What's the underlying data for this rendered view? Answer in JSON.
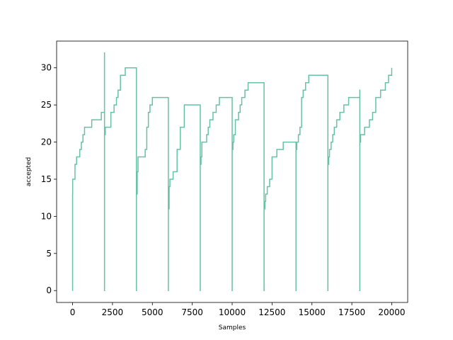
{
  "chart_data": {
    "type": "line",
    "title": "",
    "xlabel": "Samples",
    "ylabel": "accepted",
    "xlim": [
      -1000,
      21000
    ],
    "ylim": [
      -1.6,
      33.6
    ],
    "xticks": [
      0,
      2500,
      5000,
      7500,
      10000,
      12500,
      15000,
      17500,
      20000
    ],
    "yticks": [
      0,
      5,
      10,
      15,
      20,
      25,
      30
    ],
    "grid": false,
    "line_color": "#66c2a5",
    "series": [
      {
        "x": [
          0,
          1,
          5,
          100,
          150,
          250,
          350,
          450,
          550,
          650,
          750,
          900,
          1200,
          1500,
          1800,
          1999,
          2000,
          2001,
          2050,
          2100,
          2400,
          2600,
          2750,
          2850,
          3000,
          3300,
          3999,
          4000,
          4001,
          4050,
          4100,
          4400,
          4550,
          4650,
          4750,
          4850,
          5000,
          5999,
          6000,
          6001,
          6050,
          6100,
          6300,
          6550,
          6750,
          6999,
          7000,
          7999,
          8000,
          8001,
          8050,
          8100,
          8200,
          8400,
          8500,
          8600,
          8800,
          9000,
          9200,
          9999,
          10000,
          10001,
          10050,
          10100,
          10200,
          10400,
          10500,
          10600,
          10800,
          11000,
          11999,
          12000,
          12001,
          12050,
          12100,
          12200,
          12350,
          12500,
          12800,
          13200,
          13999,
          14000,
          14001,
          14050,
          14150,
          14250,
          14350,
          14450,
          14600,
          14800,
          15999,
          16000,
          16001,
          16050,
          16100,
          16200,
          16300,
          16400,
          16550,
          16750,
          17000,
          17300,
          17999,
          18000,
          18001,
          18050,
          18100,
          18300,
          18600,
          18800,
          19000,
          19300,
          19600,
          19800,
          19999
        ],
        "y": [
          0,
          13,
          15,
          15,
          17,
          18,
          18,
          19,
          20,
          21,
          22,
          22,
          23,
          23,
          24,
          32,
          0,
          21,
          22,
          22,
          24,
          25,
          26,
          27,
          29,
          30,
          30,
          0,
          13,
          16,
          18,
          18,
          19,
          22,
          24,
          25,
          26,
          26,
          0,
          11,
          14,
          15,
          16,
          19,
          22,
          23,
          25,
          25,
          0,
          17,
          18,
          20,
          20,
          21,
          22,
          23,
          24,
          25,
          26,
          26,
          0,
          19,
          20,
          21,
          23,
          24,
          25,
          26,
          27,
          28,
          28,
          0,
          11,
          12,
          13,
          14,
          15,
          18,
          19,
          20,
          20,
          0,
          19,
          20,
          21,
          22,
          26,
          27,
          28,
          29,
          29,
          0,
          17,
          18,
          19,
          20,
          21,
          22,
          23,
          24,
          25,
          26,
          27,
          0,
          20,
          21,
          21,
          22,
          23,
          24,
          26,
          27,
          28,
          29,
          30
        ]
      }
    ]
  }
}
